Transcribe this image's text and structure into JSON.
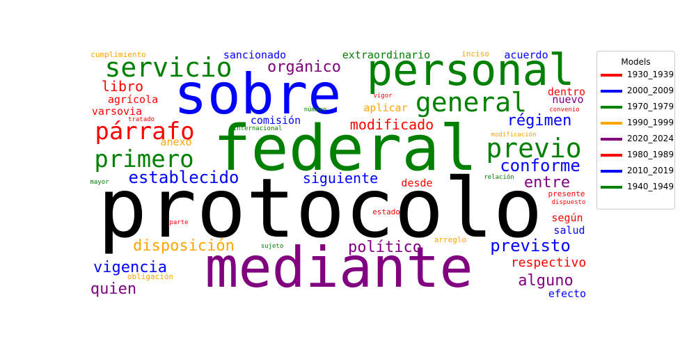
{
  "chart_data": {
    "type": "wordcloud",
    "legend": {
      "title": "Models",
      "placement": "right",
      "entries": [
        {
          "label": "1930_1939",
          "color": "#ff0000"
        },
        {
          "label": "2000_2009",
          "color": "#0000ff"
        },
        {
          "label": "1970_1979",
          "color": "#008000"
        },
        {
          "label": "1990_1999",
          "color": "#ffa500"
        },
        {
          "label": "2020_2024",
          "color": "#800080"
        },
        {
          "label": "1980_1989",
          "color": "#ff0000"
        },
        {
          "label": "2010_2019",
          "color": "#0000ff"
        },
        {
          "label": "1940_1949",
          "color": "#008000"
        }
      ]
    },
    "words": [
      {
        "text": "protocolo",
        "color": "#000000"
      },
      {
        "text": "mediante",
        "color": "#800080"
      },
      {
        "text": "federal",
        "color": "#008000"
      },
      {
        "text": "sobre",
        "color": "#0000ff"
      },
      {
        "text": "personal",
        "color": "#008000"
      },
      {
        "text": "servicio",
        "color": "#008000"
      },
      {
        "text": "general",
        "color": "#008000"
      },
      {
        "text": "previo",
        "color": "#008000"
      },
      {
        "text": "párrafo",
        "color": "#ff0000"
      },
      {
        "text": "primero",
        "color": "#008000"
      },
      {
        "text": "establecido",
        "color": "#0000ff"
      },
      {
        "text": "conforme",
        "color": "#0000ff"
      },
      {
        "text": "previsto",
        "color": "#0000ff"
      },
      {
        "text": "político",
        "color": "#800080"
      },
      {
        "text": "disposición",
        "color": "#ffa500"
      },
      {
        "text": "vigencia",
        "color": "#0000ff"
      },
      {
        "text": "quien",
        "color": "#800080"
      },
      {
        "text": "alguno",
        "color": "#800080"
      },
      {
        "text": "orgánico",
        "color": "#800080"
      },
      {
        "text": "régimen",
        "color": "#0000ff"
      },
      {
        "text": "entre",
        "color": "#800080"
      },
      {
        "text": "modificado",
        "color": "#ff0000"
      },
      {
        "text": "siguiente",
        "color": "#0000ff"
      },
      {
        "text": "libro",
        "color": "#ff0000"
      },
      {
        "text": "respectivo",
        "color": "#ff0000"
      },
      {
        "text": "sancionado",
        "color": "#0000ff"
      },
      {
        "text": "extraordinario",
        "color": "#008000"
      },
      {
        "text": "acuerdo",
        "color": "#0000ff"
      },
      {
        "text": "aplicar",
        "color": "#ffa500"
      },
      {
        "text": "comisión",
        "color": "#0000ff"
      },
      {
        "text": "agrícola",
        "color": "#ff0000"
      },
      {
        "text": "varsovia",
        "color": "#ff0000"
      },
      {
        "text": "nuevo",
        "color": "#800080"
      },
      {
        "text": "dentro",
        "color": "#ff0000"
      },
      {
        "text": "desde",
        "color": "#ff0000"
      },
      {
        "text": "salud",
        "color": "#0000ff"
      },
      {
        "text": "según",
        "color": "#ff0000"
      },
      {
        "text": "efecto",
        "color": "#0000ff"
      },
      {
        "text": "anexo",
        "color": "#ffa500"
      },
      {
        "text": "cumplimiento",
        "color": "#ffa500"
      },
      {
        "text": "inciso",
        "color": "#ffa500"
      },
      {
        "text": "vigor",
        "color": "#ff0000"
      },
      {
        "text": "convenio",
        "color": "#ff0000"
      },
      {
        "text": "número",
        "color": "#008000"
      },
      {
        "text": "tratado",
        "color": "#ff0000"
      },
      {
        "text": "internacional",
        "color": "#008000"
      },
      {
        "text": "modificación",
        "color": "#ffa500"
      },
      {
        "text": "relación",
        "color": "#008000"
      },
      {
        "text": "mayor",
        "color": "#008000"
      },
      {
        "text": "presente",
        "color": "#ff0000"
      },
      {
        "text": "dispuesto",
        "color": "#ff0000"
      },
      {
        "text": "estado",
        "color": "#ff0000"
      },
      {
        "text": "parte",
        "color": "#ff0000"
      },
      {
        "text": "arreglo",
        "color": "#ffa500"
      },
      {
        "text": "sujeto",
        "color": "#008000"
      },
      {
        "text": "obligación",
        "color": "#ffa500"
      },
      {
        "text": "·",
        "color": "#800080"
      }
    ]
  }
}
